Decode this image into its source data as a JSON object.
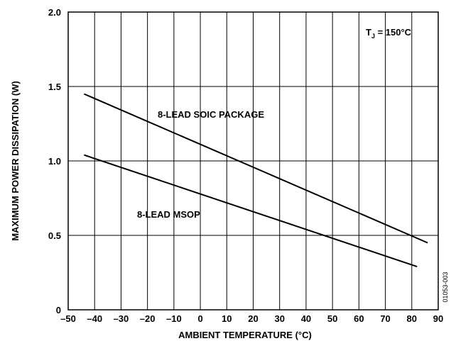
{
  "chart_data": {
    "type": "line",
    "xlabel": "AMBIENT TEMPERATURE (°C)",
    "ylabel": "MAXIMUM POWER DISSIPATION (W)",
    "xlim": [
      -50,
      90
    ],
    "ylim": [
      0,
      2.0
    ],
    "x_ticks": [
      "–50",
      "–40",
      "–30",
      "–20",
      "–10",
      "0",
      "10",
      "20",
      "30",
      "40",
      "50",
      "60",
      "70",
      "80",
      "90"
    ],
    "y_ticks": [
      "0",
      "0.5",
      "1.0",
      "1.5",
      "2.0"
    ],
    "grid": true,
    "series": [
      {
        "name": "8-LEAD SOIC PACKAGE",
        "x": [
          -44,
          86
        ],
        "y": [
          1.45,
          0.45
        ]
      },
      {
        "name": "8-LEAD MSOP",
        "x": [
          -44,
          82
        ],
        "y": [
          1.04,
          0.29
        ]
      }
    ],
    "annotations": [
      {
        "text_main": "T",
        "text_sub": "J",
        "text_rest": " = 150°C"
      }
    ],
    "figure_id": "01053-003"
  }
}
